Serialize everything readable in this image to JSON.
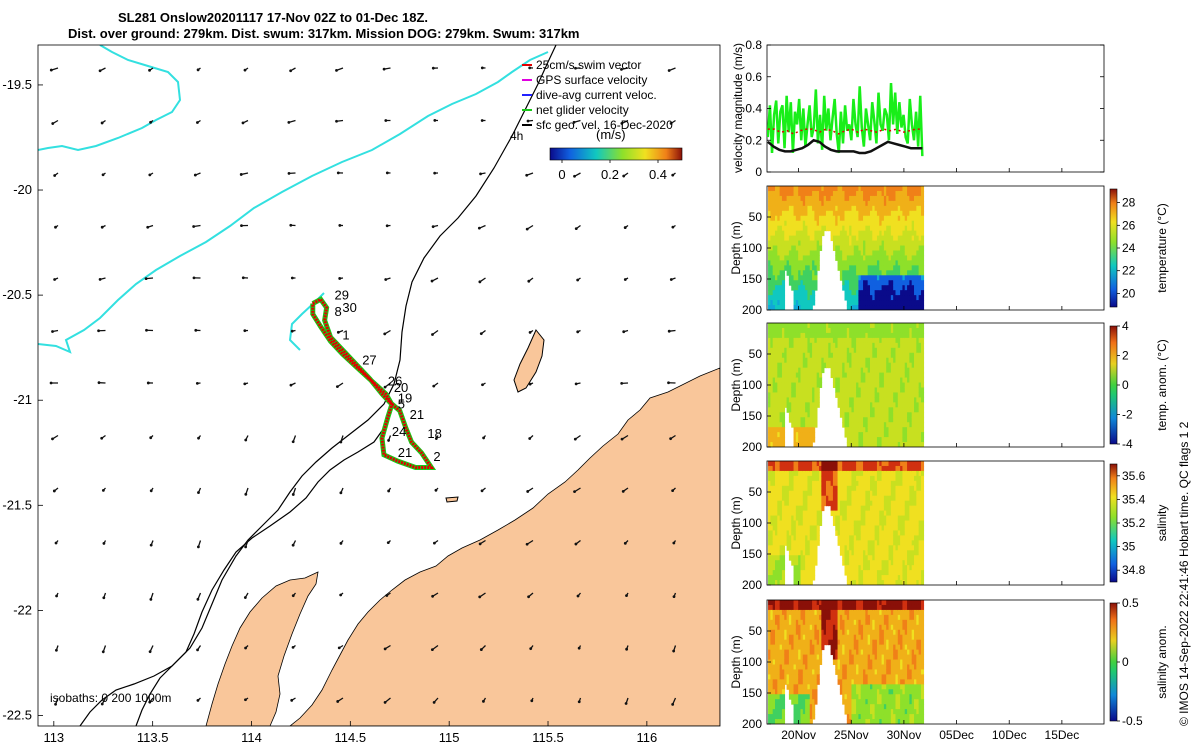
{
  "titles": {
    "line1": "SL281 Onslow20201117 17-Nov 02Z to 01-Dec 18Z.",
    "line2": "Dist. over ground: 279km. Dist. swum: 317km. Mission DOG: 279km. Swum: 317km"
  },
  "colors": {
    "land": "#f9c69a",
    "coast_cyan": "#33e0e0",
    "isobath": "#000000",
    "track_red": "#e00000",
    "track_green": "#19c919",
    "velocity_green": "#19ee19",
    "velocity_black": "#111111",
    "gps_magenta": "#e000e0"
  },
  "chart_data": [
    {
      "type": "scatter",
      "name": "map",
      "x_ticks": [
        "113",
        "113.5",
        "114",
        "114.5",
        "115",
        "115.5",
        "116"
      ],
      "x_tick_values": [
        113,
        113.5,
        114,
        114.5,
        115,
        115.5,
        116
      ],
      "y_ticks": [
        "-19.5",
        "-20",
        "-20.5",
        "-21",
        "-21.5",
        "-22",
        "-22.5"
      ],
      "y_tick_values": [
        -19.5,
        -20,
        -20.5,
        -21,
        -21.5,
        -22,
        -22.5
      ],
      "xlim": [
        112.92,
        116.37
      ],
      "ylim": [
        -22.55,
        -19.31
      ],
      "legend": [
        "25cm/s swim vector",
        "GPS surface velocity",
        "dive-avg current veloc.",
        "net glider velocity",
        "sfc geo. vel. 16-Dec-2020"
      ],
      "legend_colors": [
        "#e00000",
        "#e000e0",
        "#2222ff",
        "#19c919",
        "#000000"
      ],
      "scale_label": "4h",
      "colorbar": {
        "label": "(m/s)",
        "ticks": [
          "0",
          "0.2",
          "0.4"
        ],
        "tick_values": [
          0,
          0.2,
          0.4
        ],
        "range": [
          -0.05,
          0.5
        ]
      },
      "isobaths_label": "isobaths: 0   200  1000m",
      "day_labels": [
        {
          "text": "29",
          "lon": 114.42,
          "lat": -20.52
        },
        {
          "text": "8",
          "lon": 114.42,
          "lat": -20.6
        },
        {
          "text": "30",
          "lon": 114.46,
          "lat": -20.58
        },
        {
          "text": "1",
          "lon": 114.46,
          "lat": -20.71
        },
        {
          "text": "27",
          "lon": 114.56,
          "lat": -20.83
        },
        {
          "text": "26",
          "lon": 114.69,
          "lat": -20.93
        },
        {
          "text": "20",
          "lon": 114.72,
          "lat": -20.96
        },
        {
          "text": "19",
          "lon": 114.74,
          "lat": -21.01
        },
        {
          "text": "5",
          "lon": 114.74,
          "lat": -21.04
        },
        {
          "text": "21",
          "lon": 114.8,
          "lat": -21.09
        },
        {
          "text": "24",
          "lon": 114.71,
          "lat": -21.17
        },
        {
          "text": "18",
          "lon": 114.89,
          "lat": -21.18
        },
        {
          "text": "21",
          "lon": 114.74,
          "lat": -21.27
        },
        {
          "text": "2",
          "lon": 114.92,
          "lat": -21.29
        }
      ],
      "track": [
        [
          114.31,
          -20.54
        ],
        [
          114.35,
          -20.52
        ],
        [
          114.38,
          -20.56
        ],
        [
          114.37,
          -20.62
        ],
        [
          114.4,
          -20.7
        ],
        [
          114.47,
          -20.77
        ],
        [
          114.53,
          -20.83
        ],
        [
          114.6,
          -20.9
        ],
        [
          114.66,
          -20.97
        ],
        [
          114.7,
          -21.01
        ],
        [
          114.75,
          -21.05
        ],
        [
          114.78,
          -21.13
        ],
        [
          114.81,
          -21.2
        ],
        [
          114.86,
          -21.25
        ],
        [
          114.91,
          -21.32
        ],
        [
          114.83,
          -21.32
        ],
        [
          114.74,
          -21.29
        ],
        [
          114.67,
          -21.26
        ],
        [
          114.66,
          -21.18
        ],
        [
          114.69,
          -21.08
        ],
        [
          114.71,
          -21.02
        ],
        [
          114.68,
          -20.97
        ],
        [
          114.61,
          -20.91
        ],
        [
          114.54,
          -20.85
        ],
        [
          114.46,
          -20.78
        ],
        [
          114.4,
          -20.72
        ],
        [
          114.35,
          -20.65
        ],
        [
          114.31,
          -20.59
        ],
        [
          114.31,
          -20.54
        ]
      ]
    },
    {
      "type": "line",
      "name": "velocity magnitude",
      "ylabel": "velocity magnitude (m/s)",
      "y_ticks": [
        "0",
        "0.2",
        "0.4",
        "0.6",
        "0.8"
      ],
      "ylim": [
        0,
        0.8
      ],
      "x_start_day": 17.08,
      "series": [
        {
          "color": "#19ee19",
          "values": [
            0.22,
            0.42,
            0.12,
            0.36,
            0.45,
            0.18,
            0.38,
            0.42,
            0.15,
            0.48,
            0.25,
            0.44,
            0.12,
            0.38,
            0.3,
            0.46,
            0.2,
            0.4,
            0.16,
            0.3,
            0.42,
            0.22,
            0.28,
            0.52,
            0.18,
            0.36,
            0.14,
            0.48,
            0.26,
            0.4,
            0.2,
            0.34,
            0.46,
            0.24,
            0.12,
            0.38,
            0.18,
            0.42,
            0.26,
            0.3,
            0.2,
            0.46,
            0.3,
            0.22,
            0.54,
            0.28,
            0.16,
            0.4,
            0.3,
            0.2,
            0.44,
            0.32,
            0.18,
            0.5,
            0.3,
            0.26,
            0.4,
            0.36,
            0.2,
            0.56,
            0.3,
            0.5,
            0.24,
            0.44,
            0.28,
            0.36,
            0.22,
            0.18,
            0.46,
            0.3,
            0.2,
            0.38,
            0.16,
            0.48,
            0.1
          ]
        },
        {
          "color": "#111111",
          "values": [
            0.19,
            0.16,
            0.14,
            0.13,
            0.13,
            0.14,
            0.15,
            0.17,
            0.2,
            0.19,
            0.16,
            0.14,
            0.13,
            0.13,
            0.13,
            0.13,
            0.12,
            0.12,
            0.13,
            0.15,
            0.17,
            0.19,
            0.18,
            0.17,
            0.16,
            0.15,
            0.15,
            0.15
          ]
        },
        {
          "color": "#e00000",
          "values": [
            0.27,
            0.27,
            0.25,
            0.26,
            0.24,
            0.26,
            0.27,
            0.27,
            0.25,
            0.27,
            0.26,
            0.24,
            0.26,
            0.27,
            0.25,
            0.27,
            0.26,
            0.25,
            0.27,
            0.26,
            0.27,
            0.25,
            0.26,
            0.27,
            0.27
          ]
        }
      ]
    },
    {
      "type": "heatmap",
      "name": "temperature",
      "ylabel": "Depth (m)",
      "y_ticks": [
        "50",
        "100",
        "150",
        "200"
      ],
      "ylim": [
        200,
        0
      ],
      "colorbar_label": "temperature (°C)",
      "colorbar_ticks": [
        "20",
        "22",
        "24",
        "26",
        "28"
      ],
      "colorbar_range": [
        18.8,
        29.2
      ]
    },
    {
      "type": "heatmap",
      "name": "temp. anom.",
      "ylabel": "Depth (m)",
      "y_ticks": [
        "50",
        "100",
        "150",
        "200"
      ],
      "ylim": [
        200,
        0
      ],
      "colorbar_label": "temp. anom. (°C)",
      "colorbar_ticks": [
        "-4",
        "-2",
        "0",
        "2",
        "4"
      ],
      "colorbar_range": [
        -4,
        4
      ]
    },
    {
      "type": "heatmap",
      "name": "salinity",
      "ylabel": "Depth (m)",
      "y_ticks": [
        "50",
        "100",
        "150",
        "200"
      ],
      "ylim": [
        200,
        0
      ],
      "colorbar_label": "salinity",
      "colorbar_ticks": [
        "34.8",
        "35",
        "35.2",
        "35.4",
        "35.6"
      ],
      "colorbar_range": [
        34.7,
        35.7
      ]
    },
    {
      "type": "heatmap",
      "name": "salinity anom.",
      "ylabel": "Depth (m)",
      "y_ticks": [
        "50",
        "100",
        "150",
        "200"
      ],
      "ylim": [
        200,
        0
      ],
      "colorbar_label": "salinity anom.",
      "colorbar_ticks": [
        "-0.5",
        "0",
        "0.5"
      ],
      "colorbar_range": [
        -0.5,
        0.5
      ]
    }
  ],
  "time_axis": {
    "xlim": [
      17.0,
      49.0
    ],
    "ticks": [
      "20Nov",
      "25Nov",
      "30Nov",
      "05Dec",
      "10Dec",
      "15Dec"
    ],
    "tick_values": [
      20,
      25,
      30,
      35,
      40,
      45
    ],
    "data_end": 31.75
  },
  "credit": "© IMOS 14-Sep-2022 22:41:46 Hobart time. QC flags 1  2"
}
